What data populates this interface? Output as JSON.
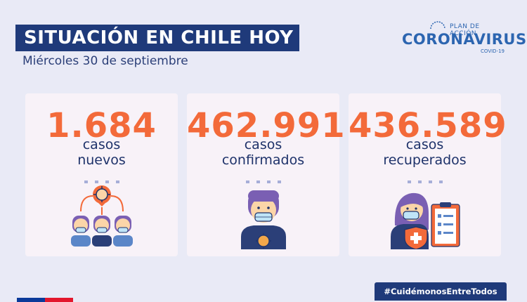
{
  "header": {
    "title": "SITUACIÓN EN CHILE HOY",
    "date": "Miércoles 30 de septiembre"
  },
  "logo": {
    "top_text": "PLAN DE ACCIÓN",
    "main_text": "CORONAVIRUS",
    "sub_text": "COVID-19"
  },
  "cards": [
    {
      "value": "1.684",
      "label_line1": "casos",
      "label_line2": "nuevos",
      "icon": "people-group-virus-icon"
    },
    {
      "value": "462.991",
      "label_line1": "casos",
      "label_line2": "confirmados",
      "icon": "masked-person-virus-icon"
    },
    {
      "value": "436.589",
      "label_line1": "casos",
      "label_line2": "recuperados",
      "icon": "woman-shield-clipboard-icon"
    }
  ],
  "footer": {
    "hashtag": "#CuidémonosEntreTodos"
  },
  "colors": {
    "navy": "#1f3a7a",
    "accent_orange": "#f36a3a",
    "background": "#e9eaf6",
    "card": "#f8f2f8"
  }
}
